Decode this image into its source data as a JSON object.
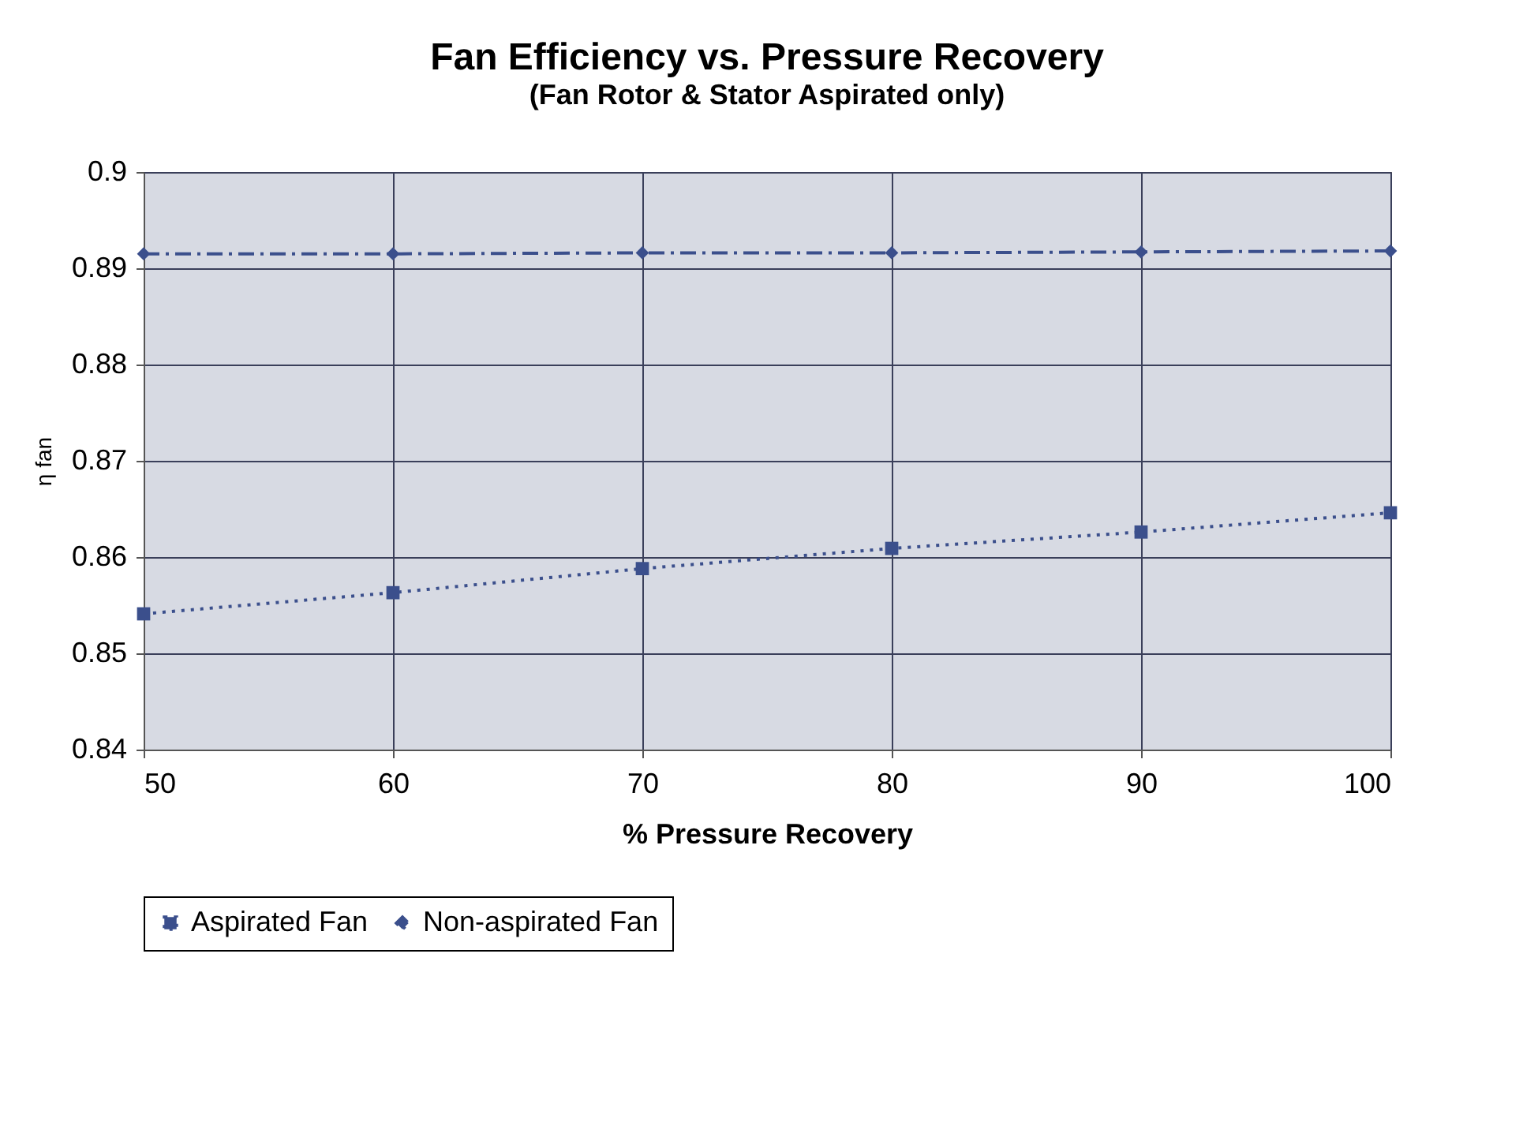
{
  "chart_data": {
    "type": "line",
    "title": "Fan Efficiency vs.  Pressure Recovery",
    "subtitle": "(Fan Rotor & Stator Aspirated only)",
    "xlabel": "% Pressure Recovery",
    "ylabel": "η fan",
    "x": [
      50,
      60,
      70,
      80,
      90,
      100
    ],
    "xlim": [
      50,
      100
    ],
    "xticks": [
      50,
      60,
      70,
      80,
      90,
      100
    ],
    "ylim": [
      0.84,
      0.9
    ],
    "yticks": [
      0.84,
      0.85,
      0.86,
      0.87,
      0.88,
      0.89,
      0.9
    ],
    "grid": true,
    "legend": "bottom",
    "series": [
      {
        "name": "Aspirated Fan",
        "color": "#3b4f8c",
        "marker": "square",
        "line_style": "dotted",
        "values": [
          0.8541,
          0.8563,
          0.8588,
          0.8609,
          0.8626,
          0.8646
        ]
      },
      {
        "name": "Non-aspirated Fan",
        "color": "#3b4f8c",
        "marker": "diamond",
        "line_style": "dashed",
        "values": [
          0.8915,
          0.8915,
          0.8916,
          0.8916,
          0.8917,
          0.8918
        ]
      }
    ]
  }
}
